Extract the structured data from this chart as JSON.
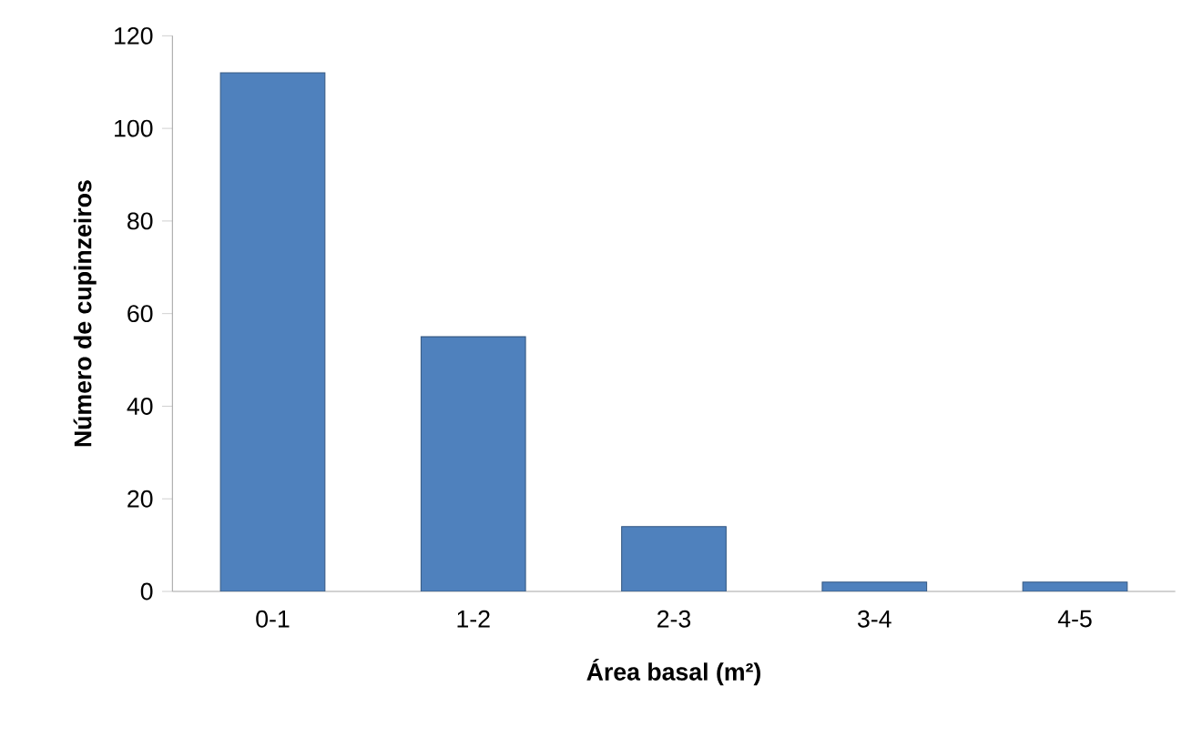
{
  "chart_data": {
    "type": "bar",
    "xlabel": "Área basal  (m²)",
    "ylabel": "Número de cupinzeiros",
    "categories": [
      "0-1",
      "1-2",
      "2-3",
      "3-4",
      "4-5"
    ],
    "values": [
      112,
      55,
      14,
      2,
      2
    ],
    "color": "#4f81bd",
    "ylim": [
      0,
      120
    ],
    "yticks": [
      0,
      20,
      40,
      60,
      80,
      100,
      120
    ],
    "grid": false
  }
}
